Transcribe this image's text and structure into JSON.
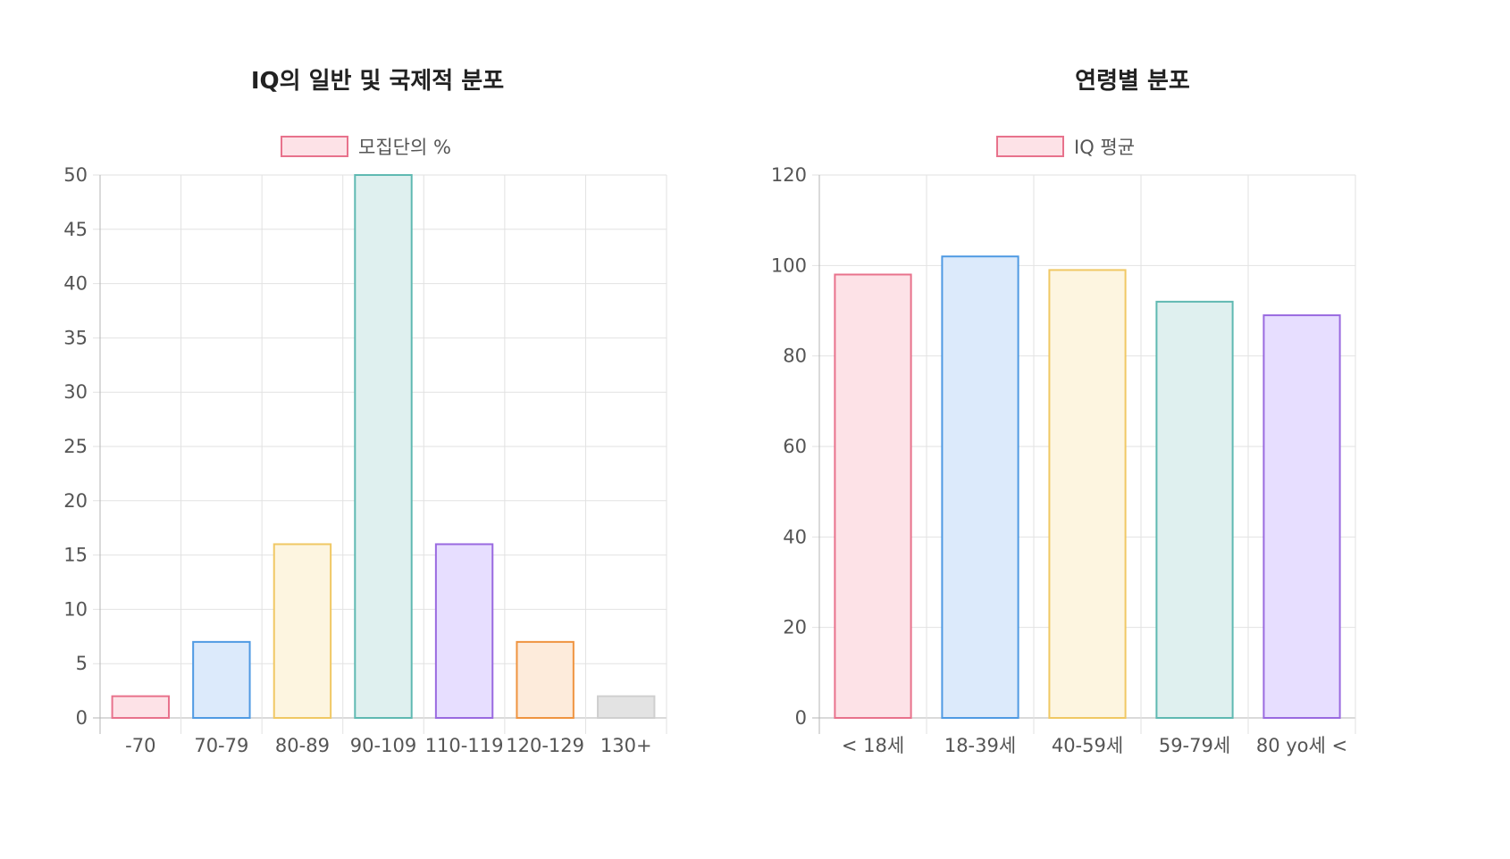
{
  "chart_data": [
    {
      "type": "bar",
      "title": "IQ의 일반 및 국제적 분포",
      "categories": [
        "-70",
        "70-79",
        "80-89",
        "90-109",
        "110-119",
        "120-129",
        "130+"
      ],
      "series": [
        {
          "name": "모집단의 %",
          "values": [
            2,
            7,
            16,
            50,
            16,
            7,
            2
          ]
        }
      ],
      "ylim": [
        0,
        50
      ],
      "yticks": [
        0,
        5,
        10,
        15,
        20,
        25,
        30,
        35,
        40,
        45,
        50
      ],
      "grid": true,
      "legend_position": "top",
      "fill_colors": [
        "#fde2e7",
        "#dceafb",
        "#fdf5e0",
        "#dff0ef",
        "#e7deff",
        "#fdebdb",
        "#e3e3e3"
      ],
      "border_colors": [
        "#e8728c",
        "#4f9ae3",
        "#f0c864",
        "#5fb9b2",
        "#9a6ae0",
        "#ef9440",
        "#cfcfcf"
      ],
      "legend_fill": "#fde2e7",
      "legend_border": "#e8728c"
    },
    {
      "type": "bar",
      "title": "연령별 분포",
      "categories": [
        "< 18세",
        "18-39세",
        "40-59세",
        "59-79세",
        "80 yo세 <"
      ],
      "series": [
        {
          "name": "IQ 평균",
          "values": [
            98,
            102,
            99,
            92,
            89
          ]
        }
      ],
      "ylim": [
        0,
        120
      ],
      "yticks": [
        0,
        20,
        40,
        60,
        80,
        100,
        120
      ],
      "grid": true,
      "legend_position": "top",
      "fill_colors": [
        "#fde2e7",
        "#dceafb",
        "#fdf5e0",
        "#dff0ef",
        "#e7deff"
      ],
      "border_colors": [
        "#e8728c",
        "#4f9ae3",
        "#f0c864",
        "#5fb9b2",
        "#9a6ae0"
      ],
      "legend_fill": "#fde2e7",
      "legend_border": "#e8728c"
    }
  ]
}
